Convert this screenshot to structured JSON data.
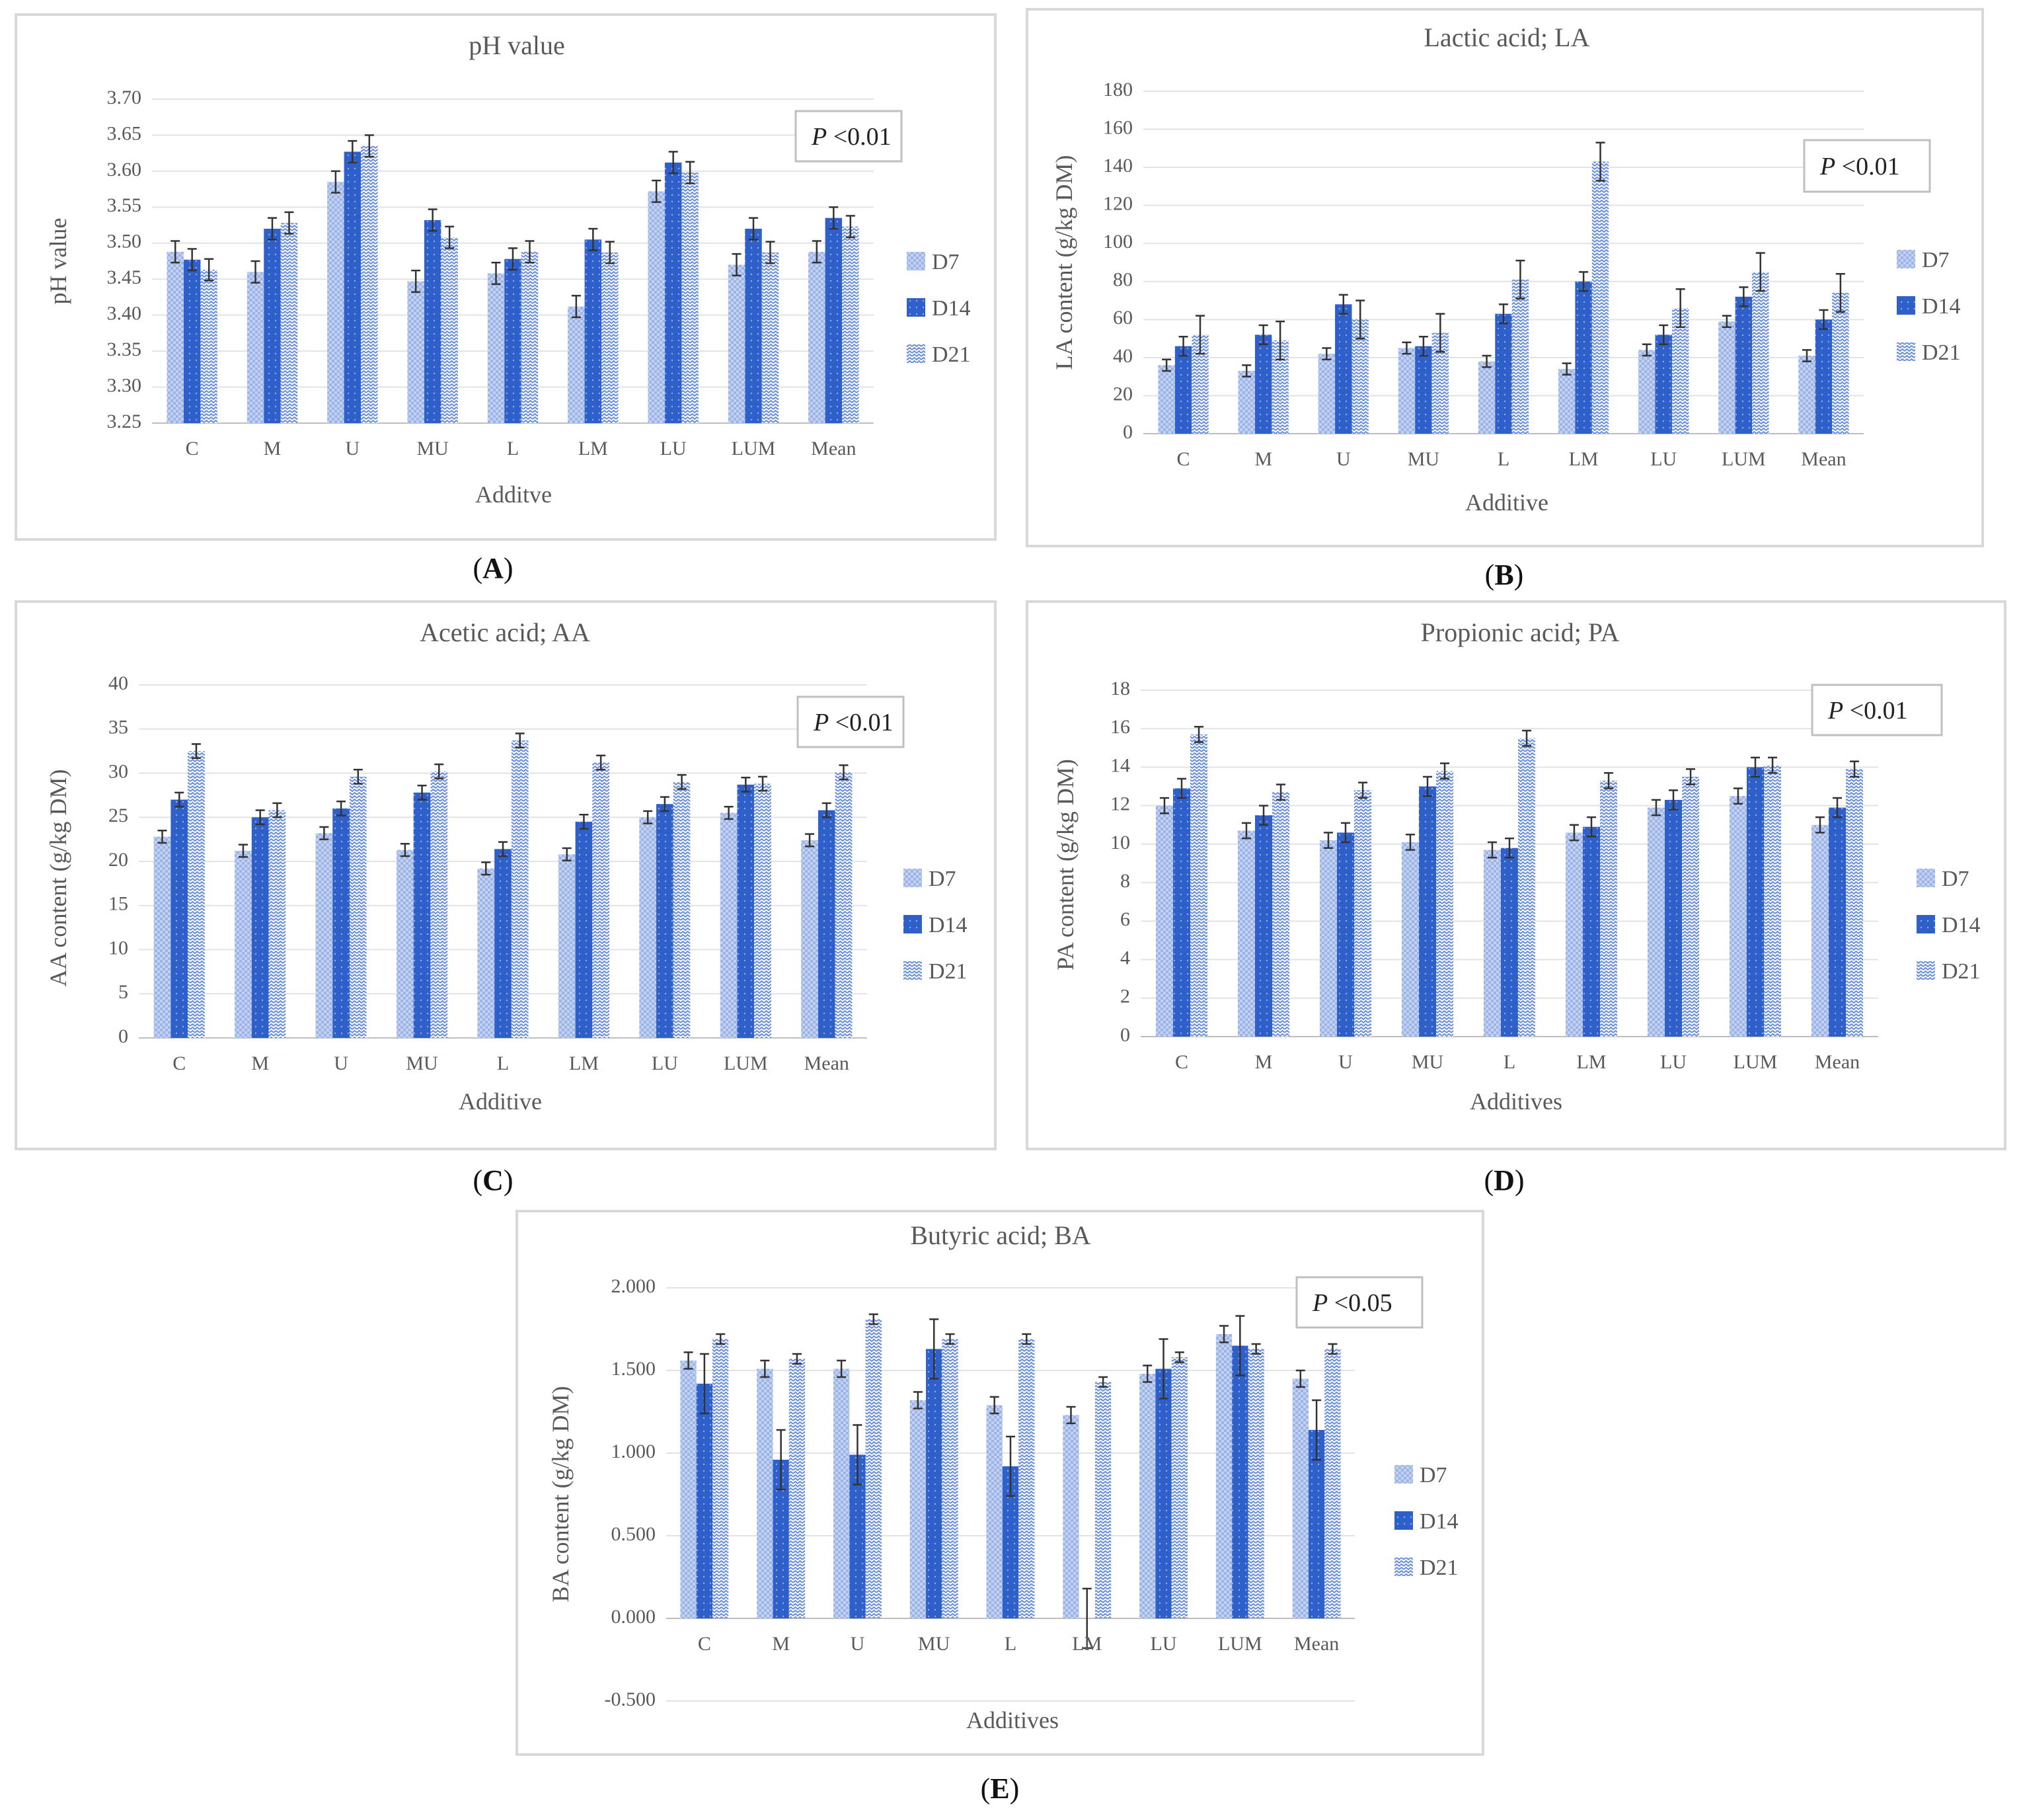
{
  "colors": {
    "D7": "#9db4e6",
    "D14": "#2f5fc8",
    "D21": "#6a8fd8"
  },
  "chart_data": [
    {
      "id": "A",
      "type": "bar",
      "caption": "A",
      "title": "pH value",
      "xlabel": "Additve",
      "ylabel": "pH value",
      "categories": [
        "C",
        "M",
        "U",
        "MU",
        "L",
        "LM",
        "LU",
        "LUM",
        "Mean"
      ],
      "ylim": [
        3.25,
        3.7
      ],
      "yticks": [
        "3.70",
        "3.65",
        "3.60",
        "3.55",
        "3.50",
        "3.45",
        "3.40",
        "3.35",
        "3.30",
        "3.25"
      ],
      "p_prefix": "P",
      "p_value": "<0.01",
      "series": [
        {
          "name": "D7",
          "values": [
            3.488,
            3.46,
            3.585,
            3.447,
            3.458,
            3.412,
            3.572,
            3.47,
            3.488
          ],
          "errors": [
            0.015,
            0.015,
            0.015,
            0.015,
            0.015,
            0.015,
            0.015,
            0.015,
            0.015
          ]
        },
        {
          "name": "D14",
          "values": [
            3.477,
            3.52,
            3.627,
            3.532,
            3.478,
            3.505,
            3.612,
            3.52,
            3.535
          ],
          "errors": [
            0.015,
            0.015,
            0.015,
            0.015,
            0.015,
            0.015,
            0.015,
            0.015,
            0.015
          ]
        },
        {
          "name": "D21",
          "values": [
            3.463,
            3.528,
            3.635,
            3.508,
            3.488,
            3.487,
            3.598,
            3.487,
            3.523
          ],
          "errors": [
            0.015,
            0.015,
            0.015,
            0.015,
            0.015,
            0.015,
            0.015,
            0.015,
            0.015
          ]
        }
      ]
    },
    {
      "id": "B",
      "type": "bar",
      "caption": "B",
      "title": "Lactic acid; LA",
      "xlabel": "Additive",
      "ylabel": "LA content (g/kg DM)",
      "categories": [
        "C",
        "M",
        "U",
        "MU",
        "L",
        "LM",
        "LU",
        "LUM",
        "Mean"
      ],
      "ylim": [
        0,
        180
      ],
      "yticks": [
        "180",
        "160",
        "140",
        "120",
        "100",
        "80",
        "60",
        "40",
        "20",
        "0"
      ],
      "p_prefix": "P",
      "p_value": "<0.01",
      "series": [
        {
          "name": "D7",
          "values": [
            36,
            33,
            42,
            45,
            38,
            34,
            44,
            59,
            41
          ],
          "errors": [
            3,
            3,
            3,
            3,
            3,
            3,
            3,
            3,
            3
          ]
        },
        {
          "name": "D14",
          "values": [
            46,
            52,
            68,
            46,
            63,
            80,
            52,
            72,
            60
          ],
          "errors": [
            5,
            5,
            5,
            5,
            5,
            5,
            5,
            5,
            5
          ]
        },
        {
          "name": "D21",
          "values": [
            52,
            49,
            60,
            53,
            81,
            143,
            66,
            85,
            74
          ],
          "errors": [
            10,
            10,
            10,
            10,
            10,
            10,
            10,
            10,
            10
          ]
        }
      ]
    },
    {
      "id": "C",
      "type": "bar",
      "caption": "C",
      "title": "Acetic acid; AA",
      "xlabel": "Additive",
      "ylabel": "AA content (g/kg DM)",
      "categories": [
        "C",
        "M",
        "U",
        "MU",
        "L",
        "LM",
        "LU",
        "LUM",
        "Mean"
      ],
      "ylim": [
        0,
        40
      ],
      "yticks": [
        "40",
        "35",
        "30",
        "25",
        "20",
        "15",
        "10",
        "5",
        "0"
      ],
      "p_prefix": "P",
      "p_value": "<0.01",
      "series": [
        {
          "name": "D7",
          "values": [
            22.8,
            21.2,
            23.2,
            21.3,
            19.2,
            20.8,
            25.0,
            25.5,
            22.4
          ],
          "errors": [
            0.7,
            0.7,
            0.7,
            0.7,
            0.7,
            0.7,
            0.7,
            0.7,
            0.7
          ]
        },
        {
          "name": "D14",
          "values": [
            27.0,
            25.0,
            26.0,
            27.8,
            21.4,
            24.5,
            26.5,
            28.7,
            25.8
          ],
          "errors": [
            0.8,
            0.8,
            0.8,
            0.8,
            0.8,
            0.8,
            0.8,
            0.8,
            0.8
          ]
        },
        {
          "name": "D21",
          "values": [
            32.5,
            25.8,
            29.6,
            30.2,
            33.7,
            31.2,
            29.0,
            28.8,
            30.1
          ],
          "errors": [
            0.8,
            0.8,
            0.8,
            0.8,
            0.8,
            0.8,
            0.8,
            0.8,
            0.8
          ]
        }
      ]
    },
    {
      "id": "D",
      "type": "bar",
      "caption": "D",
      "title": "Propionic acid; PA",
      "xlabel": "Additives",
      "ylabel": "PA content (g/kg DM)",
      "categories": [
        "C",
        "M",
        "U",
        "MU",
        "L",
        "LM",
        "LU",
        "LUM",
        "Mean"
      ],
      "ylim": [
        0,
        18
      ],
      "yticks": [
        "18",
        "16",
        "14",
        "12",
        "10",
        "8",
        "6",
        "4",
        "2",
        "0"
      ],
      "p_prefix": "P",
      "p_value": "<0.01",
      "series": [
        {
          "name": "D7",
          "values": [
            12.0,
            10.7,
            10.2,
            10.1,
            9.7,
            10.6,
            11.9,
            12.5,
            11.0
          ],
          "errors": [
            0.4,
            0.4,
            0.4,
            0.4,
            0.4,
            0.4,
            0.4,
            0.4,
            0.4
          ]
        },
        {
          "name": "D14",
          "values": [
            12.9,
            11.5,
            10.6,
            13.0,
            9.8,
            10.9,
            12.3,
            14.0,
            11.9
          ],
          "errors": [
            0.5,
            0.5,
            0.5,
            0.5,
            0.5,
            0.5,
            0.5,
            0.5,
            0.5
          ]
        },
        {
          "name": "D21",
          "values": [
            15.7,
            12.7,
            12.8,
            13.8,
            15.5,
            13.3,
            13.5,
            14.1,
            13.9
          ],
          "errors": [
            0.4,
            0.4,
            0.4,
            0.4,
            0.4,
            0.4,
            0.4,
            0.4,
            0.4
          ]
        }
      ]
    },
    {
      "id": "E",
      "type": "bar",
      "caption": "E",
      "title": "Butyric acid; BA",
      "xlabel": "Additives",
      "ylabel": "BA content (g/kg DM)",
      "categories": [
        "C",
        "M",
        "U",
        "MU",
        "L",
        "LM",
        "LU",
        "LUM",
        "Mean"
      ],
      "ylim": [
        -0.5,
        2.0
      ],
      "yticks": [
        "2.000",
        "1.500",
        "1.000",
        "0.500",
        "0.000",
        "-0.500"
      ],
      "p_prefix": "P",
      "p_value": "<0.05",
      "series": [
        {
          "name": "D7",
          "values": [
            1.56,
            1.51,
            1.51,
            1.32,
            1.29,
            1.23,
            1.48,
            1.72,
            1.45
          ],
          "errors": [
            0.05,
            0.05,
            0.05,
            0.05,
            0.05,
            0.05,
            0.05,
            0.05,
            0.05
          ]
        },
        {
          "name": "D14",
          "values": [
            1.42,
            0.96,
            0.99,
            1.63,
            0.92,
            0.0,
            1.51,
            1.65,
            1.14
          ],
          "errors": [
            0.18,
            0.18,
            0.18,
            0.18,
            0.18,
            0.18,
            0.18,
            0.18,
            0.18
          ]
        },
        {
          "name": "D21",
          "values": [
            1.69,
            1.57,
            1.81,
            1.69,
            1.69,
            1.43,
            1.58,
            1.63,
            1.63
          ],
          "errors": [
            0.03,
            0.03,
            0.03,
            0.03,
            0.03,
            0.03,
            0.03,
            0.03,
            0.03
          ]
        }
      ]
    }
  ]
}
